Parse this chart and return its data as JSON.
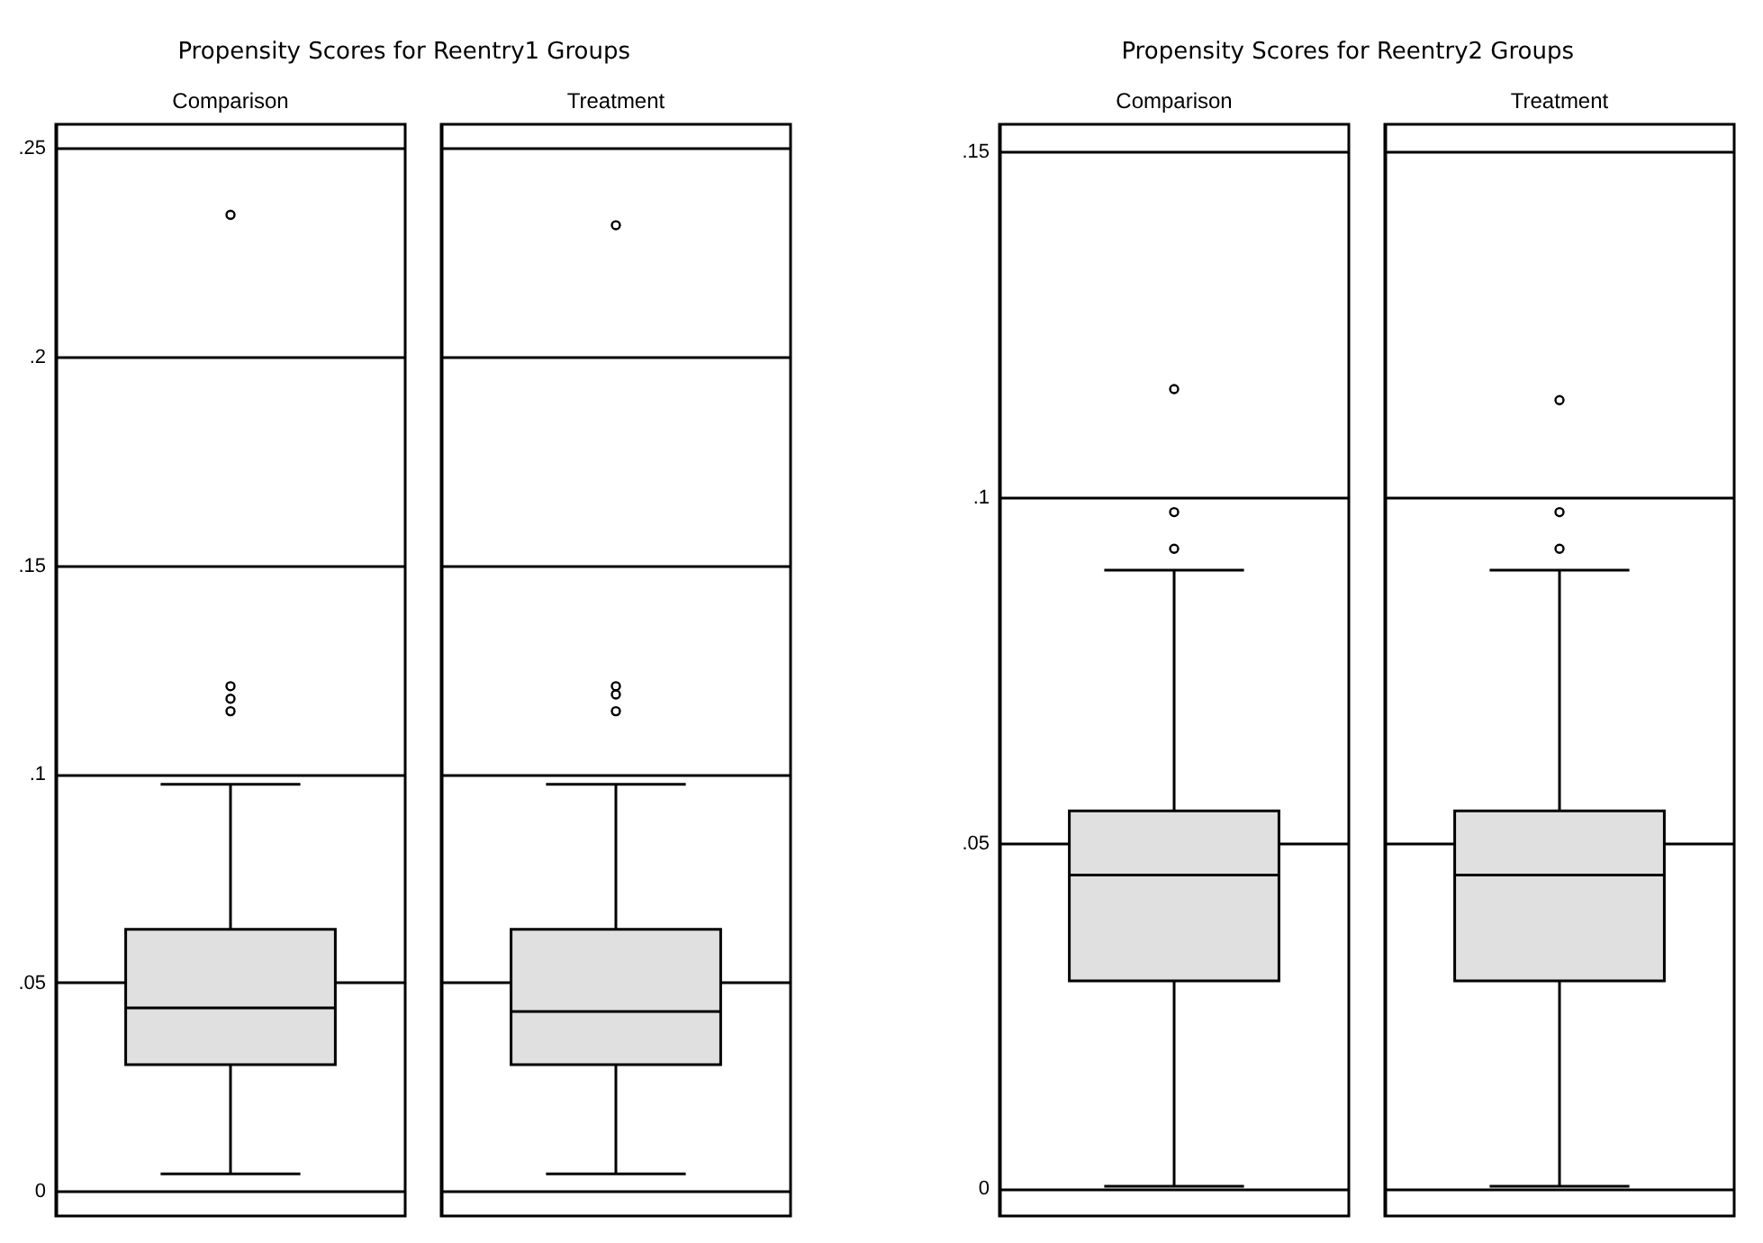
{
  "chart_data": [
    {
      "type": "box",
      "title": "Propensity Scores for Reentry1 Groups",
      "categories": [
        "Comparison",
        "Treatment"
      ],
      "colors": [
        "#e0e0e0",
        "#e0e0e0"
      ],
      "boxes": [
        {
          "low": 0.0041,
          "q1": 0.0303,
          "median": 0.0439,
          "q3": 0.0627,
          "high": 0.0975,
          "outliers": [
            0.234,
            0.121,
            0.118,
            0.115
          ]
        },
        {
          "low": 0.0041,
          "q1": 0.0303,
          "median": 0.043,
          "q3": 0.0627,
          "high": 0.0975,
          "outliers": [
            0.2315,
            0.121,
            0.119,
            0.115
          ]
        }
      ],
      "ylim": [
        -0.006,
        0.2557
      ],
      "yticks": [
        0,
        {
          "value": 0.05,
          "label": ".05"
        },
        {
          "value": 0.1,
          "label": ".1"
        },
        {
          "value": 0.15,
          "label": ".15"
        },
        {
          "value": 0.2,
          "label": ".2"
        },
        {
          "value": 0.25,
          "label": ".25"
        }
      ],
      "grid": "y"
    },
    {
      "type": "box",
      "title": "Propensity Scores for Reentry2 Groups",
      "categories": [
        "Comparison",
        "Treatment"
      ],
      "colors": [
        "#e0e0e0",
        "#e0e0e0"
      ],
      "boxes": [
        {
          "low": 0.0003,
          "q1": 0.03,
          "median": 0.0453,
          "q3": 0.0546,
          "high": 0.0894,
          "outliers": [
            0.1156,
            0.0978,
            0.0925
          ]
        },
        {
          "low": 0.0003,
          "q1": 0.03,
          "median": 0.0453,
          "q3": 0.0546,
          "high": 0.0894,
          "outliers": [
            0.114,
            0.0978,
            0.0925
          ]
        }
      ],
      "ylim": [
        -0.004,
        0.1539
      ],
      "yticks": [
        0,
        {
          "value": 0.05,
          "label": ".05"
        },
        {
          "value": 0.1,
          "label": ".1"
        },
        {
          "value": 0.15,
          "label": ".15"
        }
      ],
      "grid": "y"
    }
  ]
}
